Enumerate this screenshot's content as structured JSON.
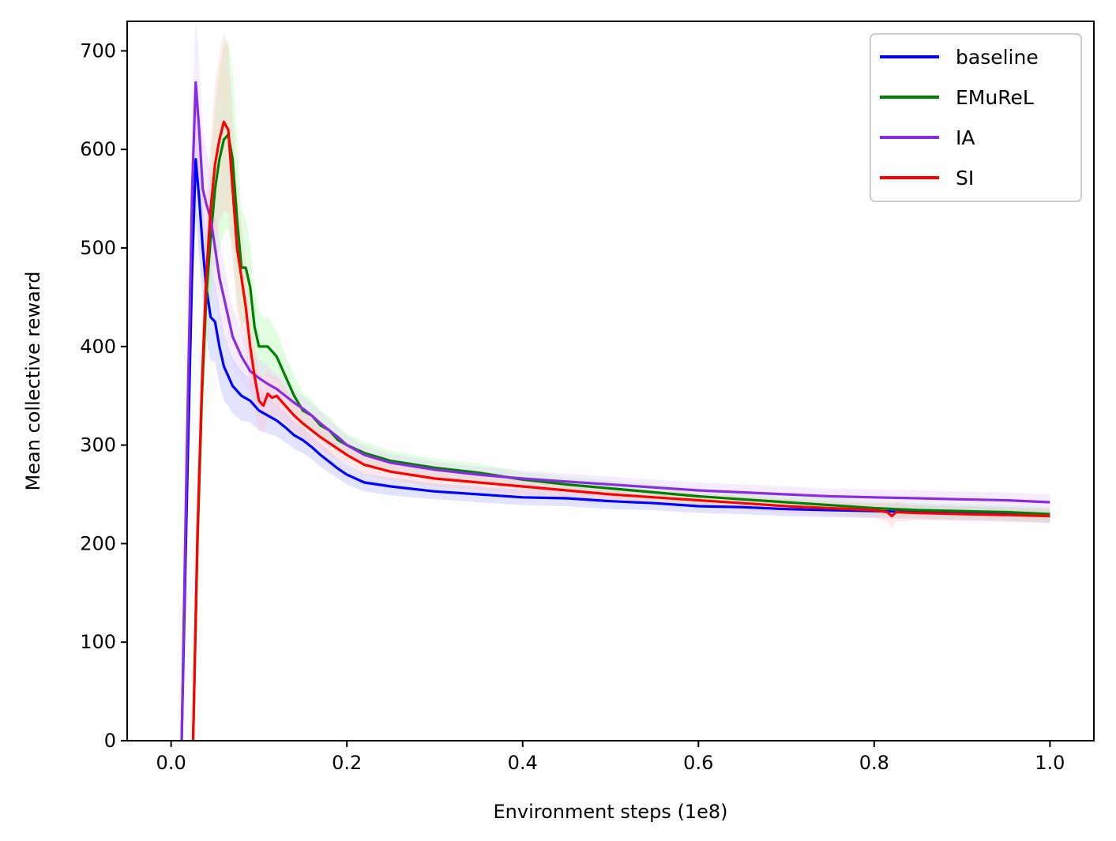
{
  "chart_data": {
    "type": "line",
    "title": "",
    "xlabel": "Environment steps (1e8)",
    "ylabel": "Mean collective reward",
    "xlim": [
      -0.05,
      1.05
    ],
    "ylim": [
      0,
      730
    ],
    "xticks": [
      0.0,
      0.2,
      0.4,
      0.6,
      0.8,
      1.0
    ],
    "xtick_labels": [
      "0.0",
      "0.2",
      "0.4",
      "0.6",
      "0.8",
      "1.0"
    ],
    "yticks": [
      0,
      100,
      200,
      300,
      400,
      500,
      600,
      700
    ],
    "ytick_labels": [
      "0",
      "100",
      "200",
      "300",
      "400",
      "500",
      "600",
      "700"
    ],
    "grid": false,
    "legend_position": "top-right",
    "series": [
      {
        "name": "baseline",
        "color": "#0000ff",
        "band_color": "#aab0ff",
        "x": [
          0.012,
          0.018,
          0.024,
          0.028,
          0.032,
          0.036,
          0.04,
          0.045,
          0.05,
          0.055,
          0.06,
          0.065,
          0.07,
          0.08,
          0.09,
          0.1,
          0.11,
          0.12,
          0.13,
          0.14,
          0.15,
          0.16,
          0.17,
          0.18,
          0.19,
          0.2,
          0.22,
          0.25,
          0.3,
          0.35,
          0.4,
          0.45,
          0.5,
          0.55,
          0.6,
          0.65,
          0.7,
          0.75,
          0.8,
          0.85,
          0.9,
          0.95,
          1.0
        ],
        "y": [
          0,
          250,
          480,
          590,
          550,
          500,
          460,
          430,
          425,
          400,
          380,
          370,
          360,
          350,
          345,
          335,
          330,
          325,
          318,
          310,
          305,
          298,
          290,
          283,
          276,
          270,
          262,
          258,
          253,
          250,
          247,
          246,
          243,
          241,
          238,
          237,
          235,
          234,
          233,
          232,
          231,
          230,
          228
        ],
        "band": [
          0,
          30,
          50,
          60,
          60,
          55,
          50,
          45,
          40,
          38,
          35,
          30,
          28,
          25,
          22,
          20,
          18,
          16,
          15,
          14,
          13,
          12,
          12,
          11,
          10,
          10,
          9,
          9,
          8,
          8,
          8,
          8,
          8,
          7,
          7,
          7,
          7,
          7,
          7,
          7,
          7,
          7,
          7
        ]
      },
      {
        "name": "EMuReL",
        "color": "#008000",
        "band_color": "#a6ffa6",
        "x": [
          0.025,
          0.03,
          0.035,
          0.04,
          0.045,
          0.05,
          0.055,
          0.06,
          0.065,
          0.07,
          0.075,
          0.08,
          0.085,
          0.09,
          0.095,
          0.1,
          0.105,
          0.11,
          0.115,
          0.12,
          0.13,
          0.14,
          0.15,
          0.16,
          0.17,
          0.18,
          0.19,
          0.2,
          0.22,
          0.25,
          0.3,
          0.35,
          0.4,
          0.45,
          0.5,
          0.55,
          0.6,
          0.65,
          0.7,
          0.75,
          0.8,
          0.85,
          0.9,
          0.95,
          1.0
        ],
        "y": [
          0,
          200,
          350,
          450,
          510,
          560,
          590,
          610,
          615,
          590,
          530,
          480,
          480,
          460,
          420,
          400,
          400,
          400,
          395,
          390,
          370,
          350,
          335,
          330,
          320,
          315,
          305,
          300,
          292,
          284,
          277,
          272,
          265,
          260,
          256,
          252,
          248,
          245,
          242,
          239,
          236,
          234,
          233,
          232,
          230
        ],
        "band": [
          0,
          40,
          50,
          60,
          70,
          80,
          90,
          95,
          95,
          90,
          80,
          60,
          50,
          45,
          40,
          35,
          30,
          30,
          28,
          25,
          22,
          20,
          18,
          16,
          15,
          14,
          13,
          12,
          11,
          10,
          9,
          9,
          8,
          8,
          8,
          8,
          8,
          8,
          7,
          7,
          7,
          7,
          7,
          7,
          7
        ]
      },
      {
        "name": "IA",
        "color": "#8a2be2",
        "band_color": "#e4c8ff",
        "x": [
          0.012,
          0.018,
          0.024,
          0.028,
          0.032,
          0.036,
          0.04,
          0.045,
          0.05,
          0.055,
          0.06,
          0.065,
          0.07,
          0.08,
          0.09,
          0.1,
          0.11,
          0.12,
          0.13,
          0.14,
          0.15,
          0.16,
          0.17,
          0.18,
          0.19,
          0.2,
          0.22,
          0.25,
          0.3,
          0.35,
          0.4,
          0.45,
          0.5,
          0.55,
          0.6,
          0.65,
          0.7,
          0.75,
          0.8,
          0.85,
          0.9,
          0.95,
          1.0
        ],
        "y": [
          0,
          300,
          560,
          668,
          620,
          560,
          545,
          530,
          500,
          470,
          450,
          430,
          410,
          390,
          375,
          368,
          362,
          357,
          350,
          343,
          337,
          330,
          322,
          315,
          308,
          300,
          290,
          282,
          275,
          270,
          266,
          263,
          260,
          257,
          254,
          252,
          250,
          248,
          247,
          246,
          245,
          244,
          242
        ],
        "band": [
          0,
          35,
          60,
          70,
          65,
          60,
          55,
          50,
          45,
          40,
          35,
          32,
          30,
          26,
          22,
          20,
          18,
          16,
          15,
          14,
          13,
          12,
          12,
          11,
          10,
          10,
          9,
          9,
          8,
          8,
          8,
          8,
          8,
          8,
          8,
          8,
          8,
          8,
          8,
          8,
          8,
          8,
          8
        ]
      },
      {
        "name": "SI",
        "color": "#ff0000",
        "band_color": "#ffc0c0",
        "x": [
          0.025,
          0.03,
          0.035,
          0.04,
          0.045,
          0.05,
          0.055,
          0.06,
          0.065,
          0.07,
          0.075,
          0.08,
          0.085,
          0.09,
          0.095,
          0.1,
          0.105,
          0.11,
          0.115,
          0.12,
          0.13,
          0.14,
          0.15,
          0.16,
          0.17,
          0.18,
          0.19,
          0.2,
          0.22,
          0.25,
          0.3,
          0.35,
          0.4,
          0.45,
          0.5,
          0.55,
          0.6,
          0.65,
          0.7,
          0.75,
          0.8,
          0.815,
          0.82,
          0.825,
          0.85,
          0.9,
          0.95,
          1.0
        ],
        "y": [
          0,
          210,
          360,
          470,
          540,
          585,
          610,
          628,
          620,
          560,
          500,
          470,
          440,
          400,
          370,
          345,
          340,
          352,
          348,
          350,
          340,
          330,
          322,
          315,
          308,
          302,
          296,
          290,
          280,
          273,
          266,
          262,
          258,
          254,
          250,
          247,
          244,
          241,
          238,
          236,
          234,
          232,
          228,
          232,
          231,
          230,
          229,
          228
        ],
        "band": [
          0,
          30,
          45,
          60,
          70,
          80,
          85,
          90,
          85,
          75,
          65,
          55,
          45,
          40,
          35,
          30,
          28,
          25,
          22,
          20,
          18,
          16,
          15,
          14,
          13,
          12,
          11,
          10,
          10,
          9,
          8,
          8,
          8,
          8,
          7,
          7,
          7,
          7,
          7,
          7,
          7,
          10,
          12,
          10,
          7,
          7,
          7,
          7
        ]
      }
    ]
  }
}
